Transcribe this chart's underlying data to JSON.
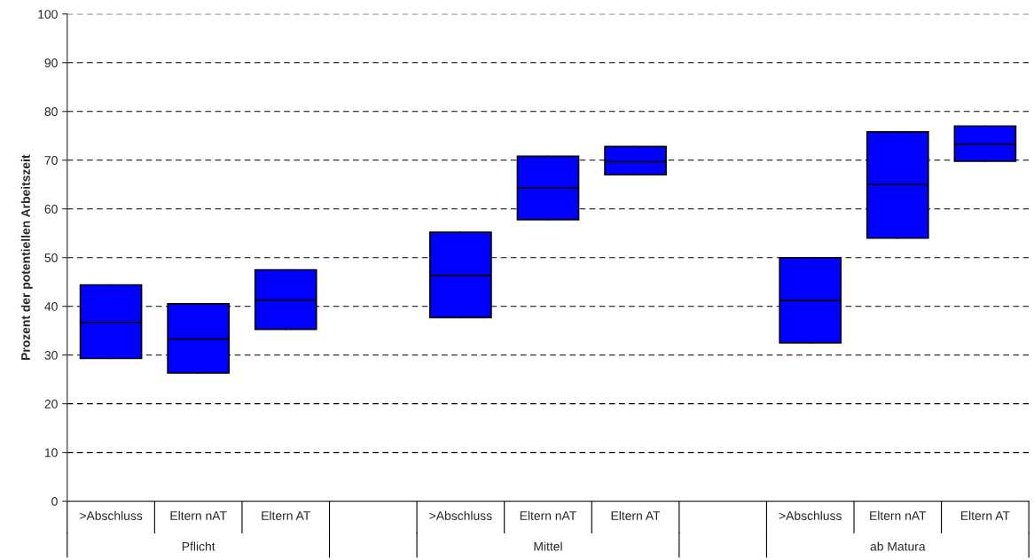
{
  "chart_data": {
    "type": "box",
    "ylabel": "Prozent der potentiellen Arbeitszeit",
    "categories": [
      ">Abschluss",
      "Eltern nAT",
      "Eltern AT",
      null,
      ">Abschluss",
      "Eltern nAT",
      "Eltern AT",
      null,
      ">Abschluss",
      "Eltern nAT",
      "Eltern AT"
    ],
    "boxes": [
      {
        "low": 29.3,
        "q1": 29.3,
        "median": 36.7,
        "q3": 44.4,
        "high": 44.4
      },
      {
        "low": 26.3,
        "q1": 26.3,
        "median": 33.3,
        "q3": 40.5,
        "high": 40.5
      },
      {
        "low": 35.3,
        "q1": 35.3,
        "median": 41.3,
        "q3": 47.5,
        "high": 47.5
      },
      null,
      {
        "low": 37.7,
        "q1": 37.7,
        "median": 46.3,
        "q3": 55.2,
        "high": 55.2
      },
      {
        "low": 57.8,
        "q1": 57.8,
        "median": 64.3,
        "q3": 70.8,
        "high": 70.8
      },
      {
        "low": 67,
        "q1": 67,
        "median": 69.7,
        "q3": 72.8,
        "high": 72.8
      },
      null,
      {
        "low": 32.5,
        "q1": 32.5,
        "median": 41.2,
        "q3": 50,
        "high": 50
      },
      {
        "low": 54,
        "q1": 54,
        "median": 65,
        "q3": 75.8,
        "high": 75.8
      },
      {
        "low": 69.8,
        "q1": 69.8,
        "median": 73.3,
        "q3": 77,
        "high": 77
      }
    ],
    "color": "#0000ff",
    "annotations": [
      "Pflicht",
      "Mittel",
      "ab Matura"
    ],
    "ylim": [
      0,
      100
    ],
    "yticks": [
      0,
      10,
      20,
      30,
      40,
      50,
      60,
      70,
      80,
      90,
      100
    ],
    "grid": "y",
    "legend": false
  }
}
